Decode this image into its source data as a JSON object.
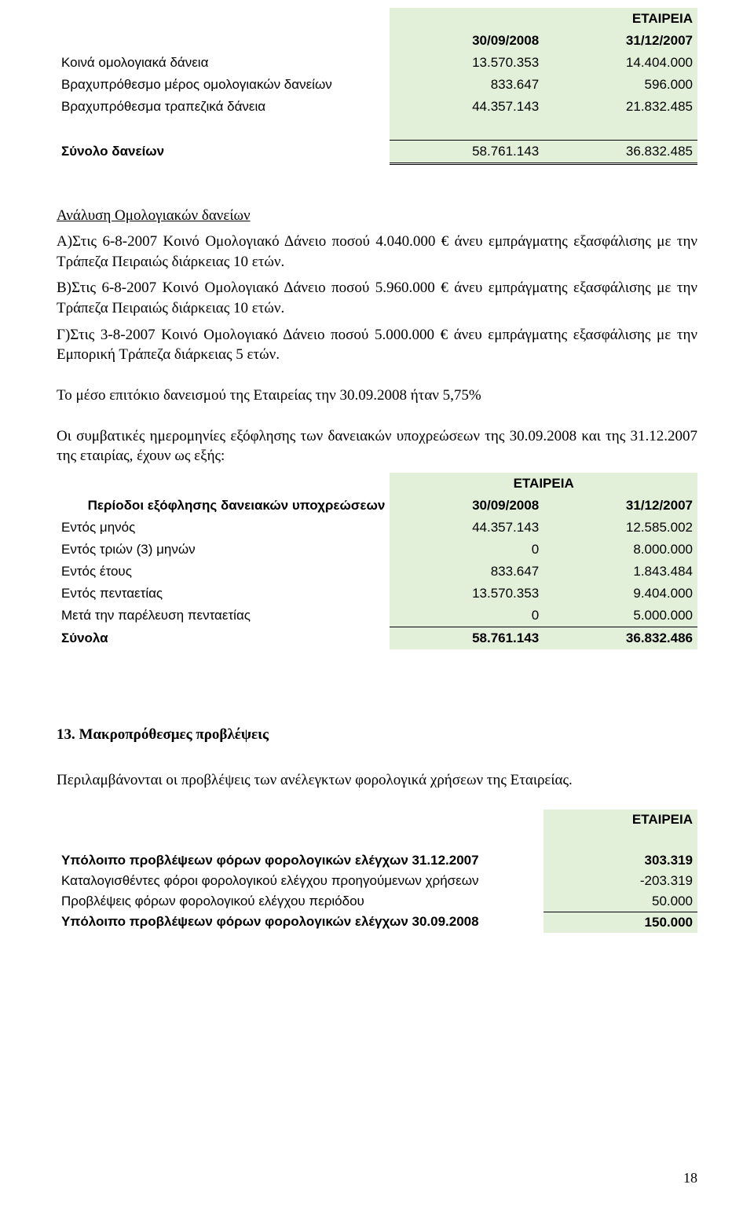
{
  "colors": {
    "cell_bg": "#e2f0d9",
    "text": "#000000",
    "page_bg": "#ffffff"
  },
  "t1": {
    "company": "ΕΤΑΙΡΕΙΑ",
    "date1": "30/09/2008",
    "date2": "31/12/2007",
    "rows": [
      {
        "label": "Κοινά ομολογιακά δάνεια",
        "v1": "13.570.353",
        "v2": "14.404.000"
      },
      {
        "label": "Βραχυπρόθεσμο μέρος ομολογιακών δανείων",
        "v1": "833.647",
        "v2": "596.000"
      },
      {
        "label": "Βραχυπρόθεσμα τραπεζικά δάνεια",
        "v1": "44.357.143",
        "v2": "21.832.485"
      }
    ],
    "total": {
      "label": "Σύνολο δανείων",
      "v1": "58.761.143",
      "v2": "36.832.485"
    }
  },
  "analysis": {
    "title": "Ανάλυση Ομολογιακών δανείων",
    "a": "Α)Στις 6-8-2007  Κοινό Ομολογιακό Δάνειο ποσού 4.040.000 € άνευ εμπράγματης εξασφάλισης με την Τράπεζα Πειραιώς διάρκειας 10 ετών.",
    "b": "Β)Στις 6-8-2007  Κοινό Ομολογιακό Δάνειο ποσού 5.960.000 € άνευ εμπράγματης εξασφάλισης με την Τράπεζα Πειραιώς διάρκειας 10 ετών.",
    "c": "Γ)Στις 3-8-2007  Κοινό Ομολογιακό Δάνειο ποσού 5.000.000 € άνευ εμπράγματης εξασφάλισης με την Εμπορική Τράπεζα διάρκειας 5 ετών.",
    "rate": "Το μέσο επιτόκιο δανεισμού της Εταιρείας την 30.09.2008 ήταν 5,75%",
    "dates_intro": "Οι συμβατικές ημερομηνίες εξόφλησης των δανειακών υποχρεώσεων της 30.09.2008 και της 31.12.2007 της εταιρίας, έχουν ως εξής:"
  },
  "t2": {
    "company": "ΕΤΑΙΡΕΙΑ",
    "header_label": "Περίοδοι εξόφλησης δανειακών υποχρεώσεων",
    "date1": "30/09/2008",
    "date2": "31/12/2007",
    "rows": [
      {
        "label": "Εντός μηνός",
        "v1": "44.357.143",
        "v2": "12.585.002"
      },
      {
        "label": "Εντός τριών (3) μηνών",
        "v1": "0",
        "v2": "8.000.000"
      },
      {
        "label": "Εντός έτους",
        "v1": "833.647",
        "v2": "1.843.484"
      },
      {
        "label": "Εντός πενταετίας",
        "v1": "13.570.353",
        "v2": "9.404.000"
      },
      {
        "label": "Μετά την παρέλευση πενταετίας",
        "v1": "0",
        "v2": "5.000.000"
      }
    ],
    "total": {
      "label": "Σύνολα",
      "v1": "58.761.143",
      "v2": "36.832.486"
    }
  },
  "section13": {
    "title": "13. Μακροπρόθεσμες προβλέψεις",
    "desc": "Περιλαμβάνονται οι προβλέψεις των ανέλεγκτων φορολογικά χρήσεων της Εταιρείας."
  },
  "t3": {
    "company": "ΕΤΑΙΡΕΙΑ",
    "rows": [
      {
        "label": "Υπόλοιπο προβλέψεων φόρων φορολογικών ελέγχων 31.12.2007",
        "v": "303.319",
        "bold": true
      },
      {
        "label": "Καταλογισθέντες φόροι φορολογικού ελέγχου προηγούμενων χρήσεων",
        "v": "-203.319",
        "bold": false
      },
      {
        "label": "Προβλέψεις φόρων φορολογικού ελέγχου περιόδου",
        "v": "50.000",
        "bold": false
      },
      {
        "label": "Υπόλοιπο προβλέψεων φόρων φορολογικών ελέγχων 30.09.2008",
        "v": "150.000",
        "bold": true
      }
    ]
  },
  "page_number": "18"
}
